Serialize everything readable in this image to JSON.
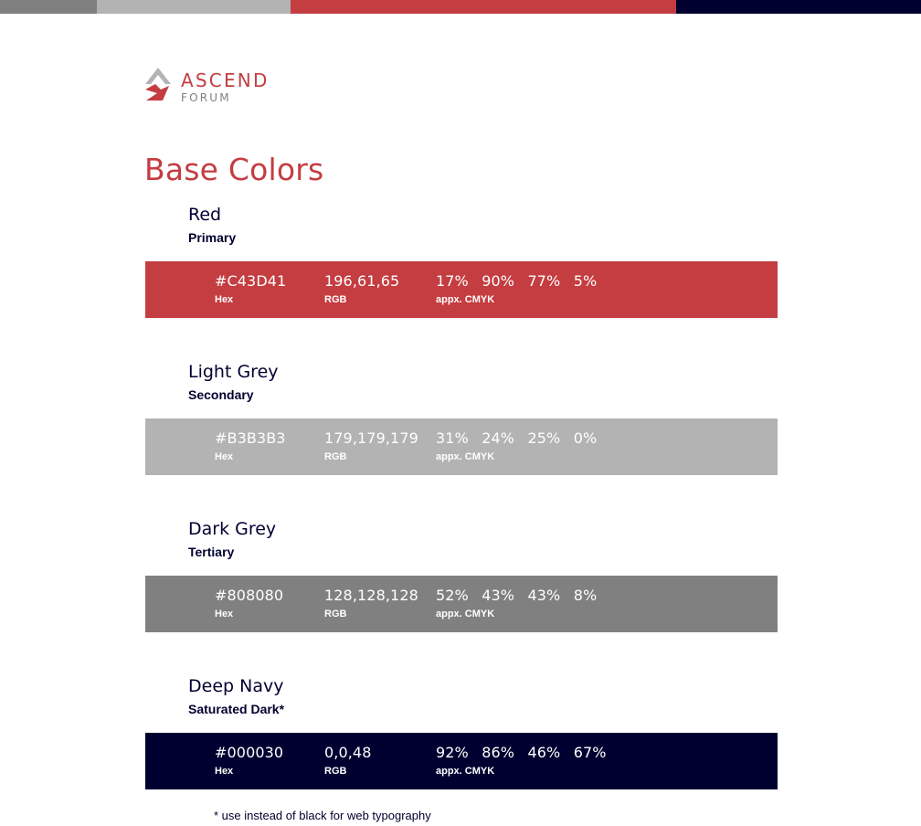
{
  "top_bar": {
    "segments": [
      "#808080",
      "#B3B3B3",
      "#C43D41",
      "#000030"
    ]
  },
  "logo": {
    "line1": "ASCEND",
    "line2": "FORUM",
    "mark_icon": "mountain-arrow-icon",
    "mark_colors": [
      "#B3B3B3",
      "#C43D41"
    ]
  },
  "title": "Base Colors",
  "accent_color": "#C43D41",
  "text_color": "#000030",
  "labels": {
    "hex": "Hex",
    "rgb": "RGB",
    "cmyk": "appx. CMYK"
  },
  "colors": [
    {
      "name": "Red",
      "role": "Primary",
      "hex": "#C43D41",
      "rgb": "196,61,65",
      "cmyk": "17%  90%  77%  5%",
      "swatch": "#C43D41"
    },
    {
      "name": "Light Grey",
      "role": "Secondary",
      "hex": "#B3B3B3",
      "rgb": "179,179,179",
      "cmyk": "31%  24%  25%  0%",
      "swatch": "#B3B3B3"
    },
    {
      "name": "Dark Grey",
      "role": "Tertiary",
      "hex": "#808080",
      "rgb": "128,128,128",
      "cmyk": "52%  43%  43%  8%",
      "swatch": "#808080"
    },
    {
      "name": "Deep Navy",
      "role": "Saturated Dark*",
      "hex": "#000030",
      "rgb": "0,0,48",
      "cmyk": "92%  86%  46%  67%",
      "swatch": "#000030"
    }
  ],
  "footnote": "* use instead of black for web typography"
}
